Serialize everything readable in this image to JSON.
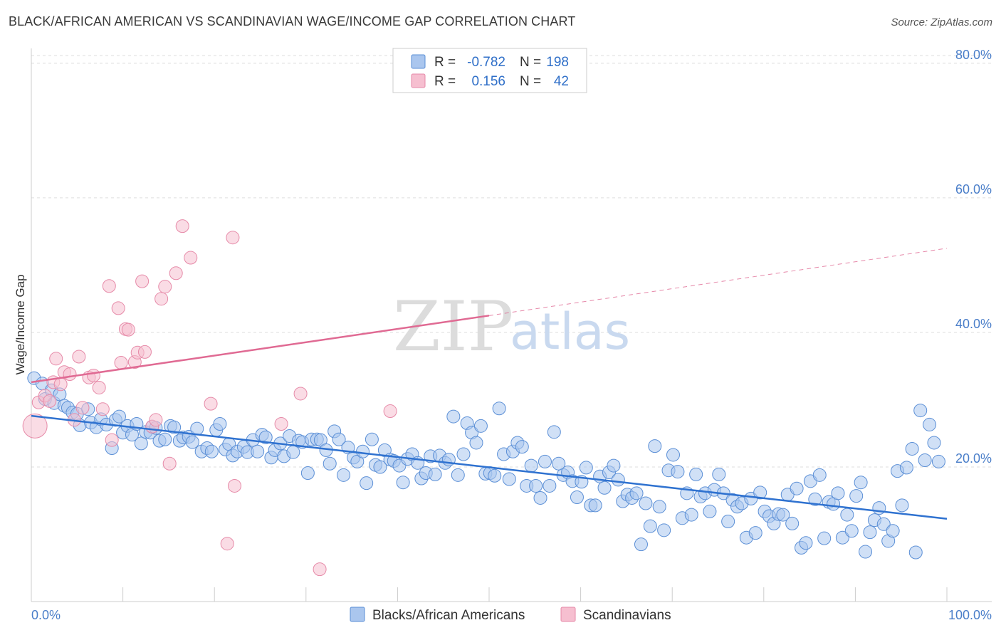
{
  "title": "BLACK/AFRICAN AMERICAN VS SCANDINAVIAN WAGE/INCOME GAP CORRELATION CHART",
  "source": "Source: ZipAtlas.com",
  "watermark": {
    "zip": "ZIP",
    "atlas": "atlas"
  },
  "colors": {
    "blue_fill": "#aac6ee",
    "blue_stroke": "#5b8fd6",
    "blue_line": "#2f72d0",
    "pink_fill": "#f6bfd0",
    "pink_stroke": "#e68aa8",
    "pink_line": "#e06a93",
    "grid": "#dddddd",
    "tick_text": "#4a7ec9"
  },
  "legend": {
    "rows": [
      {
        "r_label": "R =",
        "r_value": "-0.782",
        "n_label": "N =",
        "n_value": "198",
        "color": "blue"
      },
      {
        "r_label": "R =",
        "r_value": "0.156",
        "n_label": "N =",
        "n_value": "42",
        "color": "pink"
      }
    ]
  },
  "bottom_legend": [
    {
      "label": "Blacks/African Americans",
      "color": "blue"
    },
    {
      "label": "Scandinavians",
      "color": "pink"
    }
  ],
  "chart_data": {
    "type": "scatter",
    "title": "BLACK/AFRICAN AMERICAN VS SCANDINAVIAN WAGE/INCOME GAP CORRELATION CHART",
    "xlabel": "",
    "ylabel": "Wage/Income Gap",
    "xlim": [
      0,
      100
    ],
    "ylim": [
      0,
      82
    ],
    "x_tick_labels": [
      "0.0%",
      "100.0%"
    ],
    "y_ticks": [
      20,
      40,
      60,
      80
    ],
    "y_tick_labels": [
      "20.0%",
      "40.0%",
      "60.0%",
      "80.0%"
    ],
    "grid": "horizontal dashed",
    "legend_placement": "top-center",
    "series": [
      {
        "name": "Blacks/African Americans",
        "color": "blue",
        "r": -0.782,
        "n": 198,
        "trend": {
          "x": [
            0,
            100
          ],
          "y": [
            27.6,
            12.3
          ],
          "style": "solid"
        },
        "points": [
          [
            0.3,
            33.2
          ],
          [
            1.2,
            32.4
          ],
          [
            1.5,
            30.1
          ],
          [
            2.2,
            31.4
          ],
          [
            2.5,
            29.5
          ],
          [
            3.1,
            30.8
          ],
          [
            3.6,
            29.1
          ],
          [
            4.0,
            28.8
          ],
          [
            4.5,
            28.1
          ],
          [
            5.0,
            27.9
          ],
          [
            5.3,
            26.2
          ],
          [
            6.2,
            28.6
          ],
          [
            6.5,
            26.6
          ],
          [
            7.1,
            25.9
          ],
          [
            7.6,
            27.1
          ],
          [
            8.2,
            26.3
          ],
          [
            8.8,
            22.8
          ],
          [
            9.2,
            27.0
          ],
          [
            9.6,
            27.5
          ],
          [
            10.0,
            25.1
          ],
          [
            10.5,
            26.1
          ],
          [
            11.0,
            24.8
          ],
          [
            11.5,
            26.4
          ],
          [
            12.0,
            23.5
          ],
          [
            12.5,
            25.2
          ],
          [
            13.0,
            25.1
          ],
          [
            13.2,
            26.0
          ],
          [
            13.6,
            25.8
          ],
          [
            14.0,
            23.9
          ],
          [
            14.6,
            24.1
          ],
          [
            15.2,
            26.1
          ],
          [
            15.6,
            25.9
          ],
          [
            16.2,
            23.9
          ],
          [
            16.6,
            24.4
          ],
          [
            17.2,
            24.5
          ],
          [
            17.6,
            23.7
          ],
          [
            18.1,
            25.7
          ],
          [
            18.6,
            22.3
          ],
          [
            19.2,
            22.8
          ],
          [
            19.7,
            22.3
          ],
          [
            20.2,
            25.5
          ],
          [
            20.6,
            26.4
          ],
          [
            21.2,
            22.6
          ],
          [
            21.6,
            23.4
          ],
          [
            22.0,
            21.7
          ],
          [
            22.5,
            22.3
          ],
          [
            23.2,
            23.0
          ],
          [
            23.6,
            22.2
          ],
          [
            24.2,
            24.0
          ],
          [
            24.7,
            22.3
          ],
          [
            25.2,
            24.8
          ],
          [
            25.6,
            24.4
          ],
          [
            26.2,
            21.4
          ],
          [
            26.6,
            22.5
          ],
          [
            27.2,
            23.5
          ],
          [
            27.6,
            21.6
          ],
          [
            28.2,
            24.6
          ],
          [
            28.6,
            22.2
          ],
          [
            29.2,
            23.9
          ],
          [
            29.6,
            23.7
          ],
          [
            30.2,
            19.1
          ],
          [
            30.6,
            24.1
          ],
          [
            31.2,
            24.1
          ],
          [
            31.6,
            24.0
          ],
          [
            32.2,
            22.5
          ],
          [
            32.6,
            20.5
          ],
          [
            33.1,
            25.3
          ],
          [
            33.6,
            24.1
          ],
          [
            34.1,
            18.8
          ],
          [
            34.6,
            22.9
          ],
          [
            35.2,
            21.4
          ],
          [
            35.6,
            20.8
          ],
          [
            36.2,
            22.3
          ],
          [
            36.6,
            17.6
          ],
          [
            37.2,
            24.1
          ],
          [
            37.6,
            20.3
          ],
          [
            38.1,
            20.0
          ],
          [
            38.6,
            22.5
          ],
          [
            39.2,
            21.1
          ],
          [
            39.6,
            20.9
          ],
          [
            40.2,
            20.2
          ],
          [
            40.6,
            17.7
          ],
          [
            41.1,
            21.2
          ],
          [
            41.6,
            21.9
          ],
          [
            42.2,
            20.6
          ],
          [
            42.6,
            18.3
          ],
          [
            43.1,
            19.1
          ],
          [
            43.6,
            21.6
          ],
          [
            44.1,
            18.9
          ],
          [
            44.6,
            21.7
          ],
          [
            45.2,
            20.6
          ],
          [
            45.6,
            21.1
          ],
          [
            46.1,
            27.5
          ],
          [
            46.6,
            18.8
          ],
          [
            47.2,
            21.9
          ],
          [
            47.6,
            26.5
          ],
          [
            48.1,
            25.1
          ],
          [
            48.6,
            23.6
          ],
          [
            49.1,
            26.1
          ],
          [
            49.6,
            19.0
          ],
          [
            50.1,
            19.1
          ],
          [
            50.6,
            18.7
          ],
          [
            51.1,
            28.7
          ],
          [
            51.6,
            21.9
          ],
          [
            52.2,
            18.2
          ],
          [
            52.6,
            22.3
          ],
          [
            53.1,
            23.6
          ],
          [
            53.6,
            23.0
          ],
          [
            54.1,
            17.2
          ],
          [
            54.6,
            20.2
          ],
          [
            55.1,
            17.2
          ],
          [
            55.6,
            15.4
          ],
          [
            56.1,
            20.8
          ],
          [
            56.6,
            17.2
          ],
          [
            57.1,
            25.2
          ],
          [
            57.6,
            20.5
          ],
          [
            58.1,
            18.8
          ],
          [
            58.6,
            19.2
          ],
          [
            59.1,
            17.9
          ],
          [
            59.6,
            15.5
          ],
          [
            60.1,
            17.8
          ],
          [
            60.6,
            19.9
          ],
          [
            61.1,
            14.3
          ],
          [
            61.6,
            14.3
          ],
          [
            62.1,
            18.6
          ],
          [
            62.6,
            16.9
          ],
          [
            63.1,
            19.2
          ],
          [
            63.6,
            20.2
          ],
          [
            64.1,
            18.1
          ],
          [
            64.6,
            14.9
          ],
          [
            65.1,
            15.9
          ],
          [
            65.6,
            15.4
          ],
          [
            66.1,
            16.1
          ],
          [
            66.6,
            8.5
          ],
          [
            67.1,
            14.6
          ],
          [
            67.6,
            11.2
          ],
          [
            68.1,
            23.1
          ],
          [
            68.6,
            14.1
          ],
          [
            69.1,
            10.6
          ],
          [
            69.6,
            19.5
          ],
          [
            70.1,
            21.8
          ],
          [
            70.6,
            19.3
          ],
          [
            71.1,
            12.4
          ],
          [
            71.6,
            16.1
          ],
          [
            72.1,
            12.9
          ],
          [
            72.6,
            18.9
          ],
          [
            73.1,
            15.6
          ],
          [
            73.6,
            16.1
          ],
          [
            74.1,
            13.4
          ],
          [
            74.6,
            16.6
          ],
          [
            75.1,
            18.9
          ],
          [
            75.6,
            16.1
          ],
          [
            76.1,
            11.9
          ],
          [
            76.6,
            15.1
          ],
          [
            77.1,
            14.1
          ],
          [
            77.6,
            14.6
          ],
          [
            78.1,
            9.5
          ],
          [
            78.6,
            15.3
          ],
          [
            79.1,
            10.2
          ],
          [
            79.6,
            16.2
          ],
          [
            80.1,
            13.4
          ],
          [
            80.6,
            12.7
          ],
          [
            81.1,
            11.6
          ],
          [
            81.6,
            13.0
          ],
          [
            82.1,
            12.9
          ],
          [
            82.6,
            15.9
          ],
          [
            83.1,
            11.6
          ],
          [
            83.6,
            16.8
          ],
          [
            84.1,
            8.0
          ],
          [
            84.6,
            8.7
          ],
          [
            85.1,
            17.9
          ],
          [
            85.6,
            15.2
          ],
          [
            86.1,
            18.8
          ],
          [
            86.6,
            9.4
          ],
          [
            87.1,
            14.8
          ],
          [
            87.6,
            14.5
          ],
          [
            88.1,
            16.1
          ],
          [
            88.6,
            9.5
          ],
          [
            89.1,
            12.9
          ],
          [
            89.6,
            10.5
          ],
          [
            90.1,
            15.7
          ],
          [
            90.6,
            17.7
          ],
          [
            91.1,
            7.4
          ],
          [
            91.6,
            10.3
          ],
          [
            92.1,
            12.1
          ],
          [
            92.6,
            13.9
          ],
          [
            93.1,
            11.5
          ],
          [
            93.6,
            9.0
          ],
          [
            94.1,
            10.5
          ],
          [
            94.6,
            19.4
          ],
          [
            95.1,
            14.3
          ],
          [
            95.6,
            19.9
          ],
          [
            96.2,
            22.7
          ],
          [
            96.6,
            7.3
          ],
          [
            97.1,
            28.4
          ],
          [
            97.6,
            21.0
          ],
          [
            98.1,
            26.3
          ],
          [
            98.6,
            23.6
          ],
          [
            99.1,
            20.8
          ]
        ]
      },
      {
        "name": "Scandinavians",
        "color": "pink",
        "r": 0.156,
        "n": 42,
        "trend": {
          "x": [
            0,
            50,
            100
          ],
          "y": [
            32.6,
            42.5,
            52.5
          ],
          "style": "solid-to-50-then-dashed"
        },
        "points": [
          [
            0.4,
            26.1
          ],
          [
            0.8,
            29.6
          ],
          [
            1.5,
            30.6
          ],
          [
            2.0,
            29.8
          ],
          [
            2.4,
            32.6
          ],
          [
            2.7,
            36.1
          ],
          [
            3.2,
            32.3
          ],
          [
            3.6,
            34.1
          ],
          [
            4.2,
            33.8
          ],
          [
            4.7,
            27.0
          ],
          [
            5.2,
            36.4
          ],
          [
            5.6,
            28.8
          ],
          [
            6.3,
            33.3
          ],
          [
            6.8,
            33.6
          ],
          [
            7.4,
            31.8
          ],
          [
            7.8,
            28.6
          ],
          [
            8.5,
            46.9
          ],
          [
            8.8,
            24.0
          ],
          [
            9.5,
            43.6
          ],
          [
            9.8,
            35.5
          ],
          [
            10.3,
            40.5
          ],
          [
            10.6,
            40.4
          ],
          [
            11.3,
            35.6
          ],
          [
            11.6,
            37.0
          ],
          [
            12.1,
            47.6
          ],
          [
            12.4,
            37.1
          ],
          [
            13.2,
            26.0
          ],
          [
            13.6,
            27.0
          ],
          [
            14.2,
            45.0
          ],
          [
            14.6,
            46.8
          ],
          [
            15.1,
            20.5
          ],
          [
            15.8,
            48.8
          ],
          [
            16.5,
            55.8
          ],
          [
            17.4,
            51.1
          ],
          [
            19.6,
            29.4
          ],
          [
            21.4,
            8.6
          ],
          [
            22.0,
            54.1
          ],
          [
            22.2,
            17.2
          ],
          [
            27.3,
            26.4
          ],
          [
            29.4,
            30.9
          ],
          [
            31.5,
            4.8
          ],
          [
            39.2,
            28.3
          ]
        ]
      }
    ]
  }
}
